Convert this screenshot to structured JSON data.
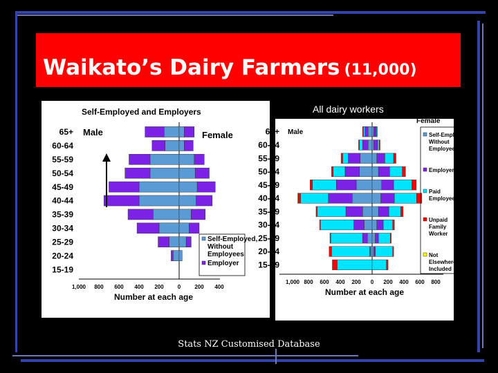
{
  "slide": {
    "title": "Waikato’s Dairy Farmers",
    "title_number": "(11,000)",
    "footer": "Stats NZ Customised Database",
    "right_heading": "All dairy workers",
    "colors": {
      "banner": "#ff0000",
      "background": "#000000"
    }
  },
  "chart_data": [
    {
      "type": "bar",
      "subtype": "population-pyramid",
      "title": "Self-Employed and Employers",
      "xlabel": "Number at each age",
      "categories": [
        "65+",
        "60-64",
        "55-59",
        "50-54",
        "45-49",
        "40-44",
        "35-39",
        "30-34",
        "25-29",
        "20-24",
        "15-19"
      ],
      "x_ticks": [
        "1,000",
        "800",
        "600",
        "400",
        "200",
        "0",
        "200",
        "400"
      ],
      "xlim": [
        -1000,
        400
      ],
      "side_labels": {
        "left": "Male",
        "right": "Female"
      },
      "legend": [
        {
          "label": "Self-Employed, Without Employees",
          "color": "#5b9bd5"
        },
        {
          "label": "Employer",
          "color": "#7b22e6"
        }
      ],
      "series": [
        {
          "name": "Male Self-Employed, Without Employees",
          "side": "left",
          "color": "#5b9bd5",
          "values": [
            150,
            140,
            290,
            290,
            400,
            400,
            260,
            200,
            100,
            60,
            0
          ]
        },
        {
          "name": "Male Employer",
          "side": "left",
          "color": "#7b22e6",
          "values": [
            190,
            130,
            210,
            250,
            300,
            350,
            250,
            220,
            110,
            20,
            0
          ]
        },
        {
          "name": "Female Self-Employed, Without Employees",
          "side": "right",
          "color": "#5b9bd5",
          "values": [
            50,
            50,
            150,
            160,
            180,
            170,
            120,
            100,
            70,
            30,
            0
          ]
        },
        {
          "name": "Female Employer",
          "side": "right",
          "color": "#7b22e6",
          "values": [
            100,
            90,
            100,
            140,
            180,
            160,
            140,
            100,
            50,
            0,
            0
          ]
        }
      ]
    },
    {
      "type": "bar",
      "subtype": "population-pyramid",
      "xlabel": "Number at each age",
      "categories": [
        "65+",
        "60-64",
        "55-59",
        "50-54",
        "45-49",
        "40-44",
        "35-39",
        "30-34",
        "25-29",
        "20-24",
        "15-19"
      ],
      "x_ticks": [
        "1,000",
        "800",
        "600",
        "400",
        "200",
        "0",
        "200",
        "400",
        "600",
        "800"
      ],
      "xlim": [
        -1000,
        800
      ],
      "side_labels": {
        "left": "Male",
        "right": "Female"
      },
      "legend": [
        {
          "label": "Self-Employed, Without Employees",
          "color": "#5b9bd5"
        },
        {
          "label": "Employer",
          "color": "#7b22e6"
        },
        {
          "label": "Paid Employee",
          "color": "#00e5ff"
        },
        {
          "label": "Unpaid Family Worker",
          "color": "#ff0000"
        },
        {
          "label": "Not Elsewhere Included",
          "color": "#ffff00"
        }
      ],
      "series": [
        {
          "name": "Male Self-Employed, Without Employees",
          "side": "left",
          "color": "#5b9bd5",
          "values": [
            50,
            50,
            150,
            160,
            200,
            250,
            120,
            100,
            60,
            20,
            0
          ]
        },
        {
          "name": "Male Employer",
          "side": "left",
          "color": "#7b22e6",
          "values": [
            40,
            70,
            150,
            180,
            250,
            300,
            210,
            130,
            60,
            10,
            0
          ]
        },
        {
          "name": "Male Paid Employee",
          "side": "left",
          "color": "#00e5ff",
          "values": [
            20,
            40,
            70,
            150,
            300,
            350,
            360,
            420,
            400,
            480,
            440
          ]
        },
        {
          "name": "Male Unpaid Family Worker",
          "side": "left",
          "color": "#ff0000",
          "values": [
            10,
            10,
            20,
            20,
            30,
            30,
            10,
            10,
            10,
            30,
            60
          ]
        },
        {
          "name": "Male Not Elsewhere Included",
          "side": "left",
          "color": "#ffff00",
          "values": [
            0,
            0,
            0,
            0,
            0,
            5,
            5,
            0,
            0,
            0,
            0
          ]
        },
        {
          "name": "Female Self-Employed, Without Employees",
          "side": "right",
          "color": "#5b9bd5",
          "values": [
            20,
            20,
            60,
            80,
            120,
            110,
            80,
            60,
            40,
            20,
            0
          ]
        },
        {
          "name": "Female Employer",
          "side": "right",
          "color": "#7b22e6",
          "values": [
            30,
            50,
            100,
            140,
            150,
            170,
            130,
            80,
            40,
            20,
            0
          ]
        },
        {
          "name": "Female Paid Employee",
          "side": "right",
          "color": "#00e5ff",
          "values": [
            10,
            20,
            110,
            160,
            230,
            280,
            150,
            120,
            150,
            220,
            180
          ]
        },
        {
          "name": "Female Unpaid Family Worker",
          "side": "right",
          "color": "#ff0000",
          "values": [
            5,
            10,
            30,
            40,
            50,
            60,
            30,
            20,
            10,
            10,
            20
          ]
        },
        {
          "name": "Female Not Elsewhere Included",
          "side": "right",
          "color": "#ffff00",
          "values": [
            0,
            0,
            0,
            0,
            5,
            5,
            0,
            0,
            0,
            0,
            0
          ]
        }
      ]
    }
  ]
}
